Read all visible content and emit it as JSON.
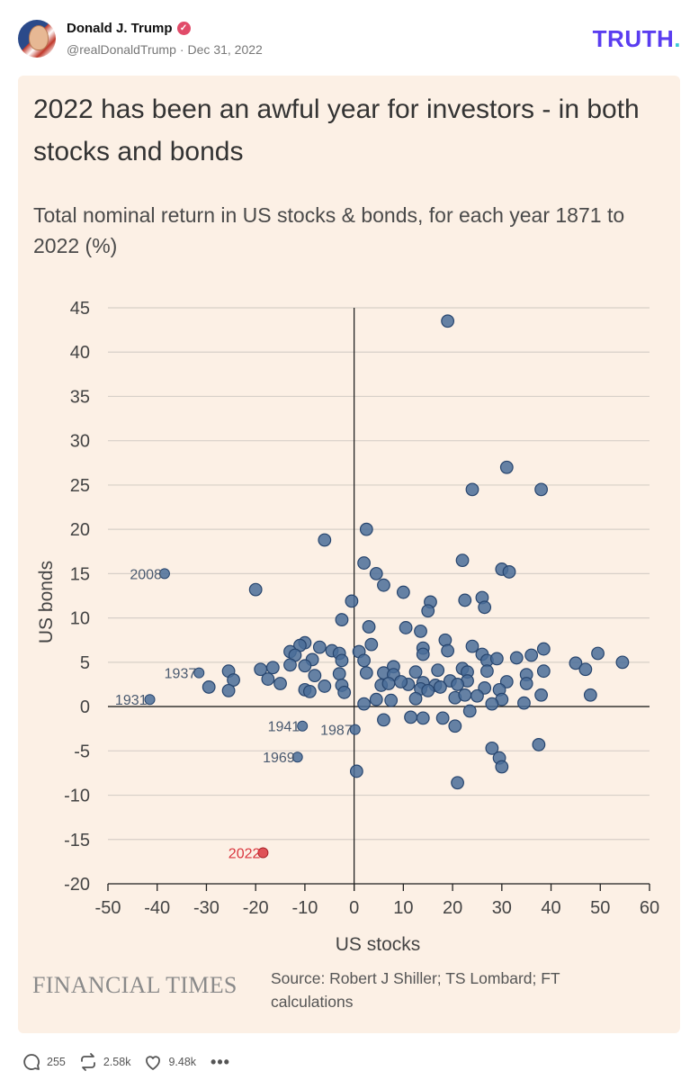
{
  "post": {
    "author_name": "Donald J. Trump",
    "handle": "@realDonaldTrump",
    "date": "Dec 31, 2022",
    "logo_text": "TRUTH",
    "logo_dot": "."
  },
  "figure": {
    "title": "2022 has been an awful year for investors - in both stocks and bonds",
    "subtitle": "Total nominal return in US stocks & bonds, for each year 1871 to 2022 (%)",
    "publisher": "FINANCIAL TIMES",
    "source": "Source: Robert J Shiller; TS Lombard; FT calculations"
  },
  "chart_data": {
    "type": "scatter",
    "xlabel": "US stocks",
    "ylabel": "US bonds",
    "xlim": [
      -50,
      60
    ],
    "ylim": [
      -20,
      45
    ],
    "xticks": [
      -50,
      -40,
      -30,
      -20,
      -10,
      0,
      10,
      20,
      30,
      40,
      50,
      60
    ],
    "yticks": [
      -20,
      -15,
      -10,
      -5,
      0,
      5,
      10,
      15,
      20,
      25,
      30,
      35,
      40,
      45
    ],
    "grid": "horizontal",
    "colors": {
      "point": "#4a6d99",
      "point_edge": "#27456e",
      "highlight": "#d9363e",
      "grid": "#d7cfc8",
      "axis": "#222222"
    },
    "labeled_points": [
      {
        "label": "2008",
        "x": -38.5,
        "y": 15.0,
        "highlight": false
      },
      {
        "label": "1937",
        "x": -31.5,
        "y": 3.8,
        "highlight": false
      },
      {
        "label": "1931",
        "x": -41.5,
        "y": 0.8,
        "highlight": false
      },
      {
        "label": "1941",
        "x": -10.5,
        "y": -2.2,
        "highlight": false
      },
      {
        "label": "1987",
        "x": 0.2,
        "y": -2.6,
        "highlight": false
      },
      {
        "label": "1969",
        "x": -11.5,
        "y": -5.7,
        "highlight": false
      },
      {
        "label": "2022",
        "x": -18.5,
        "y": -16.5,
        "highlight": true
      }
    ],
    "points": [
      [
        19,
        43.5
      ],
      [
        31,
        27
      ],
      [
        24,
        24.5
      ],
      [
        38,
        24.5
      ],
      [
        2.5,
        20
      ],
      [
        -6,
        18.8
      ],
      [
        2,
        16.2
      ],
      [
        22,
        16.5
      ],
      [
        30,
        15.5
      ],
      [
        31.5,
        15.2
      ],
      [
        4.5,
        15
      ],
      [
        -20,
        13.2
      ],
      [
        6,
        13.7
      ],
      [
        10,
        12.9
      ],
      [
        -0.5,
        11.9
      ],
      [
        15.5,
        11.8
      ],
      [
        22.5,
        12
      ],
      [
        26,
        12.3
      ],
      [
        26.5,
        11.2
      ],
      [
        15,
        10.8
      ],
      [
        -2.5,
        9.8
      ],
      [
        3,
        9
      ],
      [
        10.5,
        8.9
      ],
      [
        13.5,
        8.5
      ],
      [
        18.5,
        7.5
      ],
      [
        -10,
        7.2
      ],
      [
        -11,
        6.9
      ],
      [
        -7,
        6.7
      ],
      [
        -4.5,
        6.3
      ],
      [
        -3,
        6
      ],
      [
        3.5,
        7
      ],
      [
        14,
        6.6
      ],
      [
        24,
        6.8
      ],
      [
        -13,
        6.2
      ],
      [
        -12,
        5.8
      ],
      [
        1,
        6.2
      ],
      [
        19,
        6.3
      ],
      [
        26,
        5.9
      ],
      [
        36,
        5.8
      ],
      [
        38.5,
        6.5
      ],
      [
        49.5,
        6
      ],
      [
        -8.5,
        5.3
      ],
      [
        -2.5,
        5.2
      ],
      [
        2,
        5.2
      ],
      [
        14,
        5.9
      ],
      [
        27,
        5.2
      ],
      [
        29,
        5.4
      ],
      [
        33,
        5.5
      ],
      [
        45,
        4.9
      ],
      [
        54.5,
        5
      ],
      [
        -19,
        4.2
      ],
      [
        -16.5,
        4.4
      ],
      [
        -13,
        4.7
      ],
      [
        -10,
        4.6
      ],
      [
        8,
        4.5
      ],
      [
        12.5,
        3.9
      ],
      [
        17,
        4.1
      ],
      [
        22,
        4.3
      ],
      [
        23,
        3.9
      ],
      [
        27,
        4
      ],
      [
        35,
        3.6
      ],
      [
        38.5,
        4
      ],
      [
        47,
        4.2
      ],
      [
        -25.5,
        4
      ],
      [
        -17.5,
        3.1
      ],
      [
        -15,
        2.6
      ],
      [
        -8,
        3.5
      ],
      [
        -3,
        3.7
      ],
      [
        2.5,
        3.8
      ],
      [
        6,
        3.8
      ],
      [
        8,
        3.6
      ],
      [
        11,
        2.5
      ],
      [
        14,
        2.7
      ],
      [
        16.5,
        2.4
      ],
      [
        19.5,
        2.9
      ],
      [
        23,
        2.9
      ],
      [
        31,
        2.8
      ],
      [
        35,
        2.6
      ],
      [
        -29.5,
        2.2
      ],
      [
        -24.5,
        3
      ],
      [
        -6,
        2.3
      ],
      [
        -2.5,
        2.4
      ],
      [
        5.5,
        2.4
      ],
      [
        7,
        2.6
      ],
      [
        9.5,
        2.8
      ],
      [
        13.5,
        2
      ],
      [
        15,
        1.8
      ],
      [
        17.5,
        2.2
      ],
      [
        21,
        2.5
      ],
      [
        26.5,
        2.1
      ],
      [
        29.5,
        1.9
      ],
      [
        -25.5,
        1.8
      ],
      [
        -10,
        1.9
      ],
      [
        -9,
        1.7
      ],
      [
        -2,
        1.6
      ],
      [
        4.5,
        0.8
      ],
      [
        7.5,
        0.7
      ],
      [
        12.5,
        0.9
      ],
      [
        20.5,
        1
      ],
      [
        22.5,
        1.3
      ],
      [
        25,
        1.2
      ],
      [
        30,
        0.8
      ],
      [
        38,
        1.3
      ],
      [
        48,
        1.3
      ],
      [
        2,
        0.3
      ],
      [
        28,
        0.3
      ],
      [
        34.5,
        0.4
      ],
      [
        6,
        -1.5
      ],
      [
        11.5,
        -1.2
      ],
      [
        14,
        -1.3
      ],
      [
        18,
        -1.3
      ],
      [
        20.5,
        -2.2
      ],
      [
        23.5,
        -0.5
      ],
      [
        28,
        -4.7
      ],
      [
        29.5,
        -5.8
      ],
      [
        30,
        -6.8
      ],
      [
        37.5,
        -4.3
      ],
      [
        0.5,
        -7.3
      ],
      [
        21,
        -8.6
      ]
    ]
  },
  "actions": {
    "replies": "255",
    "retruths": "2.58k",
    "likes": "9.48k",
    "more": "•••"
  }
}
